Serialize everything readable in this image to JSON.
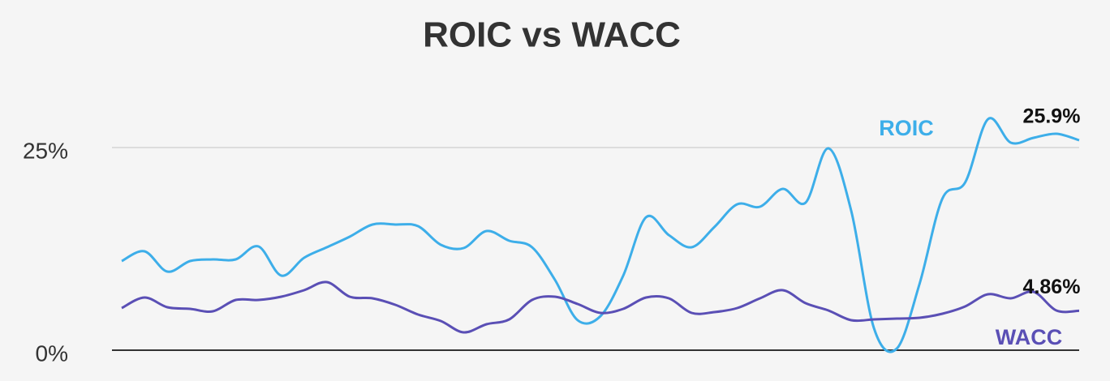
{
  "chart_data": {
    "type": "line",
    "title": "ROIC vs WACC",
    "ylim": [
      0,
      30
    ],
    "yticks": [
      {
        "value": 0,
        "label": "0%"
      },
      {
        "value": 25,
        "label": "25%"
      }
    ],
    "grid": true,
    "series": [
      {
        "name": "ROIC",
        "color": "#3daee9",
        "values": [
          11.0,
          12.2,
          9.7,
          11.0,
          11.2,
          11.2,
          12.8,
          9.2,
          11.4,
          12.7,
          14.0,
          15.5,
          15.5,
          15.3,
          13.0,
          12.6,
          14.7,
          13.5,
          12.7,
          8.7,
          3.7,
          4.2,
          9.2,
          16.4,
          14.2,
          12.7,
          15.2,
          18.0,
          17.7,
          19.9,
          18.2,
          24.9,
          17.2,
          2.7,
          0.2,
          8.2,
          18.7,
          20.7,
          28.5,
          25.6,
          26.2,
          26.7,
          25.9
        ],
        "value_labels": [
          null,
          null,
          null,
          null,
          null,
          null,
          null,
          null,
          null,
          null,
          null,
          null,
          null,
          null,
          null,
          null,
          null,
          null,
          null,
          null,
          null,
          null,
          null,
          null,
          null,
          null,
          null,
          null,
          null,
          null,
          null,
          null,
          null,
          null,
          null,
          null,
          null,
          null,
          null,
          null,
          null,
          null,
          "25.9%"
        ]
      },
      {
        "name": "WACC",
        "color": "#5a4fb5",
        "values": [
          5.2,
          6.5,
          5.3,
          5.1,
          4.8,
          6.2,
          6.2,
          6.6,
          7.4,
          8.4,
          6.6,
          6.4,
          5.6,
          4.4,
          3.6,
          2.2,
          3.2,
          3.8,
          6.2,
          6.6,
          5.7,
          4.6,
          5.1,
          6.5,
          6.4,
          4.6,
          4.7,
          5.2,
          6.4,
          7.4,
          5.8,
          4.9,
          3.7,
          3.8,
          3.9,
          4.0,
          4.5,
          5.4,
          6.9,
          6.4,
          7.2,
          4.9,
          4.86
        ],
        "value_labels": [
          null,
          null,
          null,
          null,
          null,
          null,
          null,
          null,
          null,
          null,
          null,
          null,
          null,
          null,
          null,
          null,
          null,
          null,
          null,
          null,
          null,
          null,
          null,
          null,
          null,
          null,
          null,
          null,
          null,
          null,
          null,
          null,
          null,
          null,
          null,
          null,
          null,
          null,
          null,
          null,
          null,
          null,
          "4.86%"
        ]
      }
    ]
  }
}
